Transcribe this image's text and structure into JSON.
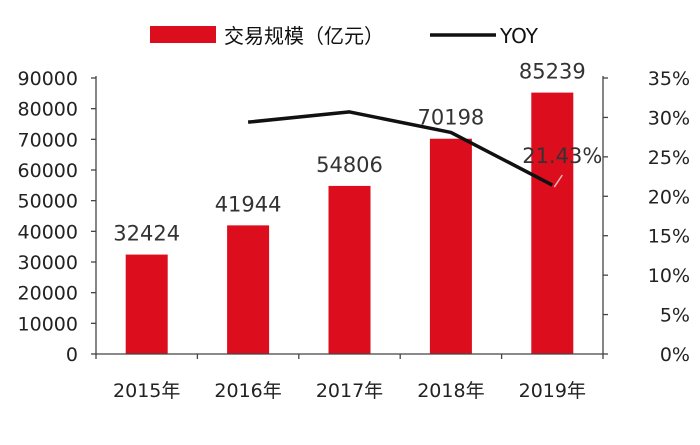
{
  "chart_data": {
    "type": "bar",
    "categories": [
      "2015年",
      "2016年",
      "2017年",
      "2018年",
      "2019年"
    ],
    "series": [
      {
        "name": "交易规模（亿元）",
        "type": "bar",
        "axis": "left",
        "color": "#dc0d1c",
        "values": [
          32424,
          41944,
          54806,
          70198,
          85239
        ],
        "data_labels": [
          "32424",
          "41944",
          "54806",
          "70198",
          "85239"
        ]
      },
      {
        "name": "YOY",
        "type": "line",
        "axis": "right",
        "color": "#111111",
        "values": [
          null,
          29.4,
          30.7,
          28.1,
          21.43
        ],
        "data_labels": [
          null,
          null,
          null,
          null,
          "21.43%"
        ]
      }
    ],
    "y_left": {
      "min": 0,
      "max": 90000,
      "ticks": [
        "0",
        "10000",
        "20000",
        "30000",
        "40000",
        "50000",
        "60000",
        "70000",
        "80000",
        "90000"
      ]
    },
    "y_right": {
      "min": 0,
      "max": 35,
      "ticks": [
        "0%",
        "5%",
        "10%",
        "15%",
        "20%",
        "25%",
        "30%",
        "35%"
      ]
    },
    "legend_position": "top-center",
    "grid": false
  }
}
